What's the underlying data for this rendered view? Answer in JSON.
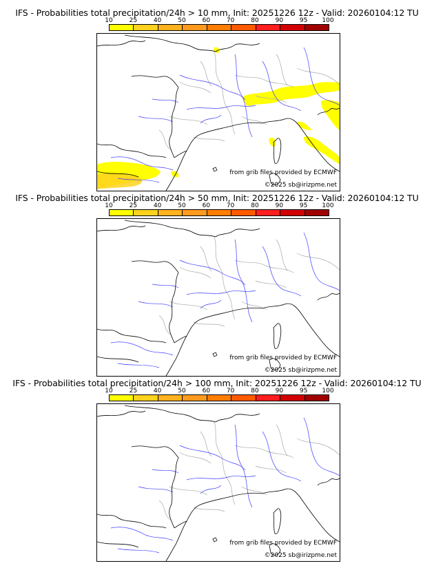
{
  "panels": [
    {
      "title": "IFS - Probabilities total precipitation/24h > 10 mm, Init: 20251226 12z - Valid: 20260104:12 TU",
      "has_precip": true
    },
    {
      "title": "IFS - Probabilities total precipitation/24h > 50 mm, Init: 20251226 12z - Valid: 20260104:12 TU",
      "has_precip": false
    },
    {
      "title": "IFS - Probabilities total precipitation/24h > 100 mm, Init: 20251226 12z - Valid: 20260104:12 TU",
      "has_precip": false
    }
  ],
  "legend": {
    "labels": [
      "10",
      "25",
      "40",
      "50",
      "60",
      "70",
      "80",
      "90",
      "95",
      "100"
    ],
    "colors": [
      "#ffff00",
      "#ffd21e",
      "#ffb21e",
      "#ff9a1e",
      "#ff7d00",
      "#ff5a00",
      "#ff1e1e",
      "#d20000",
      "#a00000",
      "#6e0000"
    ]
  },
  "credits": {
    "source": "from grib files provided by ECMWF",
    "copyright": "©2025 sb@irizpme.net"
  },
  "colors": {
    "coast": "#000000",
    "rivers": "#3a3aff",
    "borders": "#a8a8a8",
    "precip_low": "#ffff00",
    "precip_mid": "#ffd21e"
  }
}
